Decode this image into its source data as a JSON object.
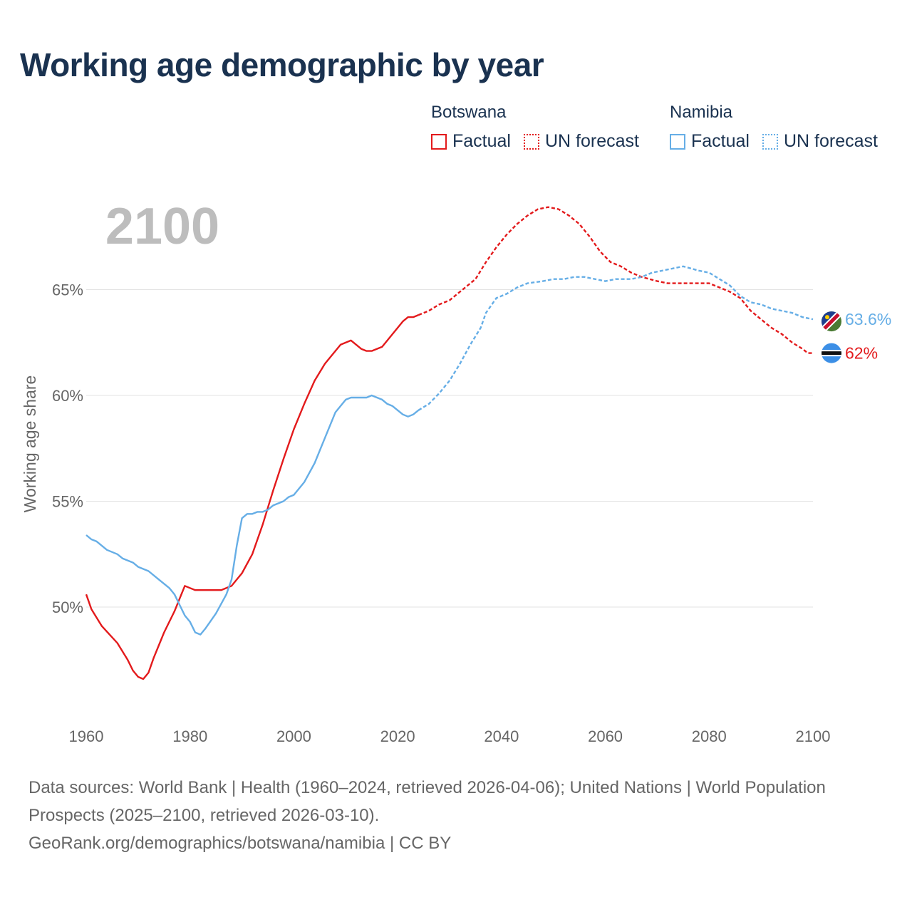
{
  "title": "Working age demographic by year",
  "legend": {
    "groups": [
      {
        "country": "Botswana",
        "color": "#e31a1c",
        "factual_label": "Factual",
        "forecast_label": "UN forecast"
      },
      {
        "country": "Namibia",
        "color": "#66aee6",
        "factual_label": "Factual",
        "forecast_label": "UN forecast"
      }
    ]
  },
  "year_label": "2100",
  "footer": {
    "sources": "Data sources: World Bank | Health (1960–2024, retrieved 2026-04-06); United Nations | World Population Prospects (2025–2100, retrieved 2026-03-10).",
    "credit": "GeoRank.org/demographics/botswana/namibia | CC BY"
  },
  "chart_data": {
    "type": "line",
    "title": "Working age demographic by year",
    "xlabel": "",
    "ylabel": "Working age share",
    "xlim": [
      1960,
      2100
    ],
    "ylim": [
      45,
      70
    ],
    "x_ticks": [
      1960,
      1980,
      2000,
      2020,
      2040,
      2060,
      2080,
      2100
    ],
    "x_tick_labels": [
      "1960",
      "1980",
      "2000",
      "2020",
      "2040",
      "2060",
      "2080",
      "2100"
    ],
    "y_ticks": [
      50,
      55,
      60,
      65
    ],
    "y_tick_labels": [
      "50%",
      "55%",
      "60%",
      "65%"
    ],
    "grid": true,
    "forecast_start": 2024,
    "series": [
      {
        "name": "Botswana",
        "color": "#e31a1c",
        "end_label": "62%",
        "flag": "botswana-flag",
        "points": [
          [
            1960,
            50.6
          ],
          [
            1961,
            49.9
          ],
          [
            1963,
            49.1
          ],
          [
            1966,
            48.3
          ],
          [
            1968,
            47.5
          ],
          [
            1969,
            47.0
          ],
          [
            1970,
            46.7
          ],
          [
            1971,
            46.6
          ],
          [
            1972,
            46.9
          ],
          [
            1973,
            47.6
          ],
          [
            1974,
            48.2
          ],
          [
            1975,
            48.8
          ],
          [
            1977,
            49.8
          ],
          [
            1979,
            51.0
          ],
          [
            1980,
            50.9
          ],
          [
            1981,
            50.8
          ],
          [
            1983,
            50.8
          ],
          [
            1986,
            50.8
          ],
          [
            1987,
            50.9
          ],
          [
            1988,
            51.0
          ],
          [
            1990,
            51.6
          ],
          [
            1992,
            52.5
          ],
          [
            1994,
            53.9
          ],
          [
            1996,
            55.5
          ],
          [
            1998,
            57.0
          ],
          [
            2000,
            58.4
          ],
          [
            2002,
            59.6
          ],
          [
            2004,
            60.7
          ],
          [
            2006,
            61.5
          ],
          [
            2008,
            62.1
          ],
          [
            2009,
            62.4
          ],
          [
            2011,
            62.6
          ],
          [
            2013,
            62.2
          ],
          [
            2014,
            62.1
          ],
          [
            2015,
            62.1
          ],
          [
            2017,
            62.3
          ],
          [
            2019,
            62.9
          ],
          [
            2021,
            63.5
          ],
          [
            2022,
            63.7
          ],
          [
            2023,
            63.7
          ],
          [
            2024,
            63.8
          ],
          [
            2026,
            64.0
          ],
          [
            2028,
            64.3
          ],
          [
            2030,
            64.5
          ],
          [
            2033,
            65.1
          ],
          [
            2035,
            65.5
          ],
          [
            2037,
            66.3
          ],
          [
            2039,
            67.0
          ],
          [
            2041,
            67.6
          ],
          [
            2043,
            68.1
          ],
          [
            2045,
            68.5
          ],
          [
            2047,
            68.8
          ],
          [
            2049,
            68.9
          ],
          [
            2051,
            68.8
          ],
          [
            2053,
            68.5
          ],
          [
            2055,
            68.1
          ],
          [
            2057,
            67.5
          ],
          [
            2059,
            66.8
          ],
          [
            2061,
            66.3
          ],
          [
            2063,
            66.1
          ],
          [
            2065,
            65.8
          ],
          [
            2067,
            65.6
          ],
          [
            2070,
            65.4
          ],
          [
            2072,
            65.3
          ],
          [
            2075,
            65.3
          ],
          [
            2080,
            65.3
          ],
          [
            2082,
            65.1
          ],
          [
            2084,
            64.9
          ],
          [
            2086,
            64.6
          ],
          [
            2088,
            64.0
          ],
          [
            2090,
            63.6
          ],
          [
            2092,
            63.2
          ],
          [
            2094,
            62.9
          ],
          [
            2096,
            62.5
          ],
          [
            2098,
            62.2
          ],
          [
            2099,
            62.0
          ],
          [
            2100,
            62.0
          ]
        ]
      },
      {
        "name": "Namibia",
        "color": "#66aee6",
        "end_label": "63.6%",
        "flag": "namibia-flag",
        "points": [
          [
            1960,
            53.4
          ],
          [
            1961,
            53.2
          ],
          [
            1962,
            53.1
          ],
          [
            1964,
            52.7
          ],
          [
            1966,
            52.5
          ],
          [
            1967,
            52.3
          ],
          [
            1969,
            52.1
          ],
          [
            1970,
            51.9
          ],
          [
            1972,
            51.7
          ],
          [
            1974,
            51.3
          ],
          [
            1976,
            50.9
          ],
          [
            1977,
            50.6
          ],
          [
            1978,
            50.1
          ],
          [
            1979,
            49.6
          ],
          [
            1980,
            49.3
          ],
          [
            1981,
            48.8
          ],
          [
            1982,
            48.7
          ],
          [
            1983,
            49.0
          ],
          [
            1985,
            49.7
          ],
          [
            1987,
            50.6
          ],
          [
            1988,
            51.3
          ],
          [
            1989,
            52.9
          ],
          [
            1990,
            54.2
          ],
          [
            1991,
            54.4
          ],
          [
            1992,
            54.4
          ],
          [
            1993,
            54.5
          ],
          [
            1994,
            54.5
          ],
          [
            1995,
            54.6
          ],
          [
            1996,
            54.8
          ],
          [
            1998,
            55.0
          ],
          [
            1999,
            55.2
          ],
          [
            2000,
            55.3
          ],
          [
            2002,
            55.9
          ],
          [
            2004,
            56.8
          ],
          [
            2006,
            58.0
          ],
          [
            2008,
            59.2
          ],
          [
            2010,
            59.8
          ],
          [
            2011,
            59.9
          ],
          [
            2012,
            59.9
          ],
          [
            2014,
            59.9
          ],
          [
            2015,
            60.0
          ],
          [
            2017,
            59.8
          ],
          [
            2018,
            59.6
          ],
          [
            2019,
            59.5
          ],
          [
            2020,
            59.3
          ],
          [
            2021,
            59.1
          ],
          [
            2022,
            59.0
          ],
          [
            2023,
            59.1
          ],
          [
            2024,
            59.3
          ],
          [
            2026,
            59.6
          ],
          [
            2028,
            60.1
          ],
          [
            2030,
            60.7
          ],
          [
            2032,
            61.5
          ],
          [
            2034,
            62.4
          ],
          [
            2036,
            63.2
          ],
          [
            2037,
            63.9
          ],
          [
            2039,
            64.6
          ],
          [
            2041,
            64.8
          ],
          [
            2043,
            65.1
          ],
          [
            2045,
            65.3
          ],
          [
            2048,
            65.4
          ],
          [
            2050,
            65.5
          ],
          [
            2052,
            65.5
          ],
          [
            2054,
            65.6
          ],
          [
            2056,
            65.6
          ],
          [
            2058,
            65.5
          ],
          [
            2060,
            65.4
          ],
          [
            2062,
            65.5
          ],
          [
            2065,
            65.5
          ],
          [
            2067,
            65.6
          ],
          [
            2069,
            65.8
          ],
          [
            2071,
            65.9
          ],
          [
            2073,
            66.0
          ],
          [
            2075,
            66.1
          ],
          [
            2078,
            65.9
          ],
          [
            2080,
            65.8
          ],
          [
            2082,
            65.5
          ],
          [
            2084,
            65.2
          ],
          [
            2086,
            64.7
          ],
          [
            2088,
            64.4
          ],
          [
            2090,
            64.3
          ],
          [
            2092,
            64.1
          ],
          [
            2094,
            64.0
          ],
          [
            2096,
            63.9
          ],
          [
            2098,
            63.7
          ],
          [
            2100,
            63.6
          ]
        ]
      }
    ]
  }
}
